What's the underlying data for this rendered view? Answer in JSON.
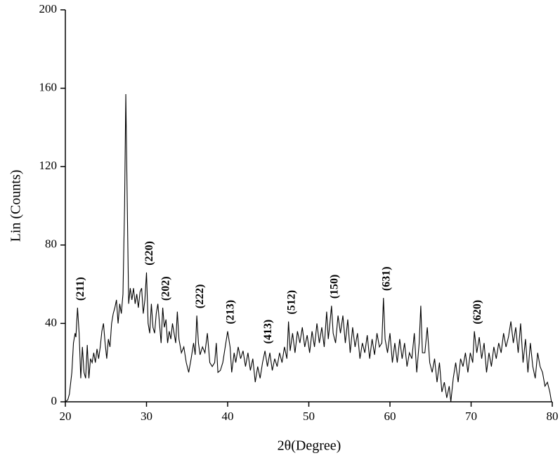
{
  "chart_data": {
    "type": "line",
    "x_label": "2θ(Degree)",
    "y_label": "Lin (Counts)",
    "xlim": [
      20,
      80
    ],
    "xticks": [
      20,
      30,
      40,
      50,
      60,
      70,
      80
    ],
    "ylim": [
      0,
      200
    ],
    "yticks": [
      0,
      40,
      80,
      120,
      160,
      200
    ],
    "grid": false,
    "series": [
      {
        "color": "#000000",
        "x": [
          20.0,
          20.3,
          20.5,
          20.8,
          21.0,
          21.2,
          21.3,
          21.5,
          21.7,
          21.9,
          22.1,
          22.3,
          22.5,
          22.7,
          22.9,
          23.1,
          23.3,
          23.5,
          23.7,
          23.9,
          24.1,
          24.3,
          24.5,
          24.7,
          24.9,
          25.1,
          25.3,
          25.5,
          25.7,
          25.9,
          26.1,
          26.3,
          26.5,
          26.7,
          26.9,
          27.1,
          27.3,
          27.45,
          27.6,
          27.8,
          28.0,
          28.2,
          28.4,
          28.6,
          28.8,
          29.0,
          29.2,
          29.4,
          29.6,
          29.8,
          30.0,
          30.2,
          30.4,
          30.6,
          30.8,
          31.0,
          31.2,
          31.4,
          31.6,
          31.8,
          32.0,
          32.2,
          32.4,
          32.6,
          32.8,
          33.0,
          33.2,
          33.4,
          33.6,
          33.8,
          34.0,
          34.3,
          34.6,
          34.9,
          35.2,
          35.5,
          35.8,
          36.0,
          36.2,
          36.4,
          36.6,
          36.9,
          37.2,
          37.5,
          37.8,
          38.1,
          38.4,
          38.6,
          38.8,
          39.1,
          39.4,
          39.7,
          40.0,
          40.3,
          40.5,
          40.8,
          41.0,
          41.3,
          41.6,
          41.9,
          42.2,
          42.5,
          42.8,
          43.1,
          43.4,
          43.7,
          44.0,
          44.3,
          44.6,
          44.9,
          45.2,
          45.5,
          45.8,
          46.1,
          46.4,
          46.7,
          47.0,
          47.3,
          47.5,
          47.7,
          48.0,
          48.3,
          48.6,
          48.9,
          49.2,
          49.5,
          49.8,
          50.1,
          50.4,
          50.7,
          51.0,
          51.3,
          51.6,
          51.9,
          52.2,
          52.4,
          52.6,
          52.8,
          53.0,
          53.3,
          53.6,
          53.9,
          54.2,
          54.5,
          54.8,
          55.1,
          55.4,
          55.7,
          56.0,
          56.3,
          56.6,
          56.9,
          57.2,
          57.5,
          57.8,
          58.1,
          58.4,
          58.7,
          59.0,
          59.2,
          59.4,
          59.7,
          60.0,
          60.3,
          60.6,
          60.9,
          61.2,
          61.5,
          61.8,
          62.1,
          62.4,
          62.7,
          63.0,
          63.3,
          63.6,
          63.8,
          64.0,
          64.3,
          64.6,
          64.9,
          65.2,
          65.5,
          65.8,
          66.1,
          66.4,
          66.7,
          67.0,
          67.3,
          67.5,
          67.8,
          68.1,
          68.4,
          68.7,
          69.0,
          69.3,
          69.6,
          69.9,
          70.2,
          70.4,
          70.7,
          71.0,
          71.3,
          71.6,
          71.9,
          72.2,
          72.5,
          72.8,
          73.1,
          73.4,
          73.7,
          74.0,
          74.3,
          74.6,
          74.9,
          75.2,
          75.5,
          75.8,
          76.1,
          76.4,
          76.7,
          77.0,
          77.3,
          77.6,
          77.9,
          78.2,
          78.5,
          78.8,
          79.1,
          79.4,
          79.7,
          79.9
        ],
        "values": [
          0,
          1,
          4,
          15,
          30,
          35,
          33,
          48,
          35,
          12,
          28,
          15,
          12,
          29,
          12,
          22,
          20,
          25,
          20,
          27,
          22,
          28,
          36,
          40,
          30,
          22,
          32,
          28,
          40,
          45,
          48,
          52,
          40,
          50,
          45,
          55,
          100,
          157,
          110,
          50,
          58,
          52,
          58,
          50,
          55,
          48,
          56,
          58,
          45,
          52,
          66,
          40,
          35,
          50,
          38,
          35,
          45,
          50,
          40,
          30,
          48,
          38,
          42,
          30,
          36,
          32,
          40,
          35,
          30,
          46,
          32,
          25,
          28,
          20,
          15,
          22,
          30,
          24,
          44,
          30,
          24,
          28,
          25,
          35,
          20,
          18,
          20,
          30,
          15,
          16,
          20,
          28,
          36,
          28,
          15,
          25,
          20,
          28,
          22,
          26,
          18,
          25,
          16,
          22,
          10,
          18,
          12,
          20,
          26,
          18,
          25,
          16,
          22,
          18,
          25,
          20,
          28,
          22,
          41,
          26,
          35,
          25,
          36,
          30,
          38,
          28,
          34,
          25,
          36,
          28,
          40,
          30,
          38,
          28,
          46,
          32,
          40,
          49,
          35,
          30,
          44,
          35,
          44,
          30,
          42,
          25,
          38,
          28,
          35,
          22,
          30,
          25,
          34,
          22,
          32,
          24,
          35,
          28,
          30,
          53,
          32,
          25,
          35,
          20,
          30,
          20,
          32,
          22,
          30,
          18,
          25,
          22,
          35,
          15,
          30,
          49,
          25,
          25,
          38,
          20,
          15,
          22,
          10,
          20,
          5,
          10,
          2,
          8,
          0,
          12,
          20,
          10,
          22,
          18,
          25,
          15,
          25,
          20,
          36,
          25,
          33,
          22,
          30,
          15,
          25,
          18,
          28,
          22,
          30,
          25,
          35,
          28,
          33,
          41,
          30,
          38,
          25,
          40,
          20,
          32,
          15,
          30,
          18,
          12,
          25,
          18,
          15,
          8,
          10,
          5,
          0
        ]
      }
    ],
    "annotations": [
      {
        "text": "(211)",
        "x": 21.5,
        "y": 48
      },
      {
        "text": "(220)",
        "x": 30.0,
        "y": 66
      },
      {
        "text": "(202)",
        "x": 32.0,
        "y": 48
      },
      {
        "text": "(222)",
        "x": 36.2,
        "y": 44
      },
      {
        "text": "(213)",
        "x": 40.0,
        "y": 36
      },
      {
        "text": "(413)",
        "x": 44.6,
        "y": 26
      },
      {
        "text": "(512)",
        "x": 47.5,
        "y": 41
      },
      {
        "text": "(150)",
        "x": 52.8,
        "y": 49
      },
      {
        "text": "(631)",
        "x": 59.2,
        "y": 53
      },
      {
        "text": "(620)",
        "x": 70.4,
        "y": 36
      }
    ]
  }
}
